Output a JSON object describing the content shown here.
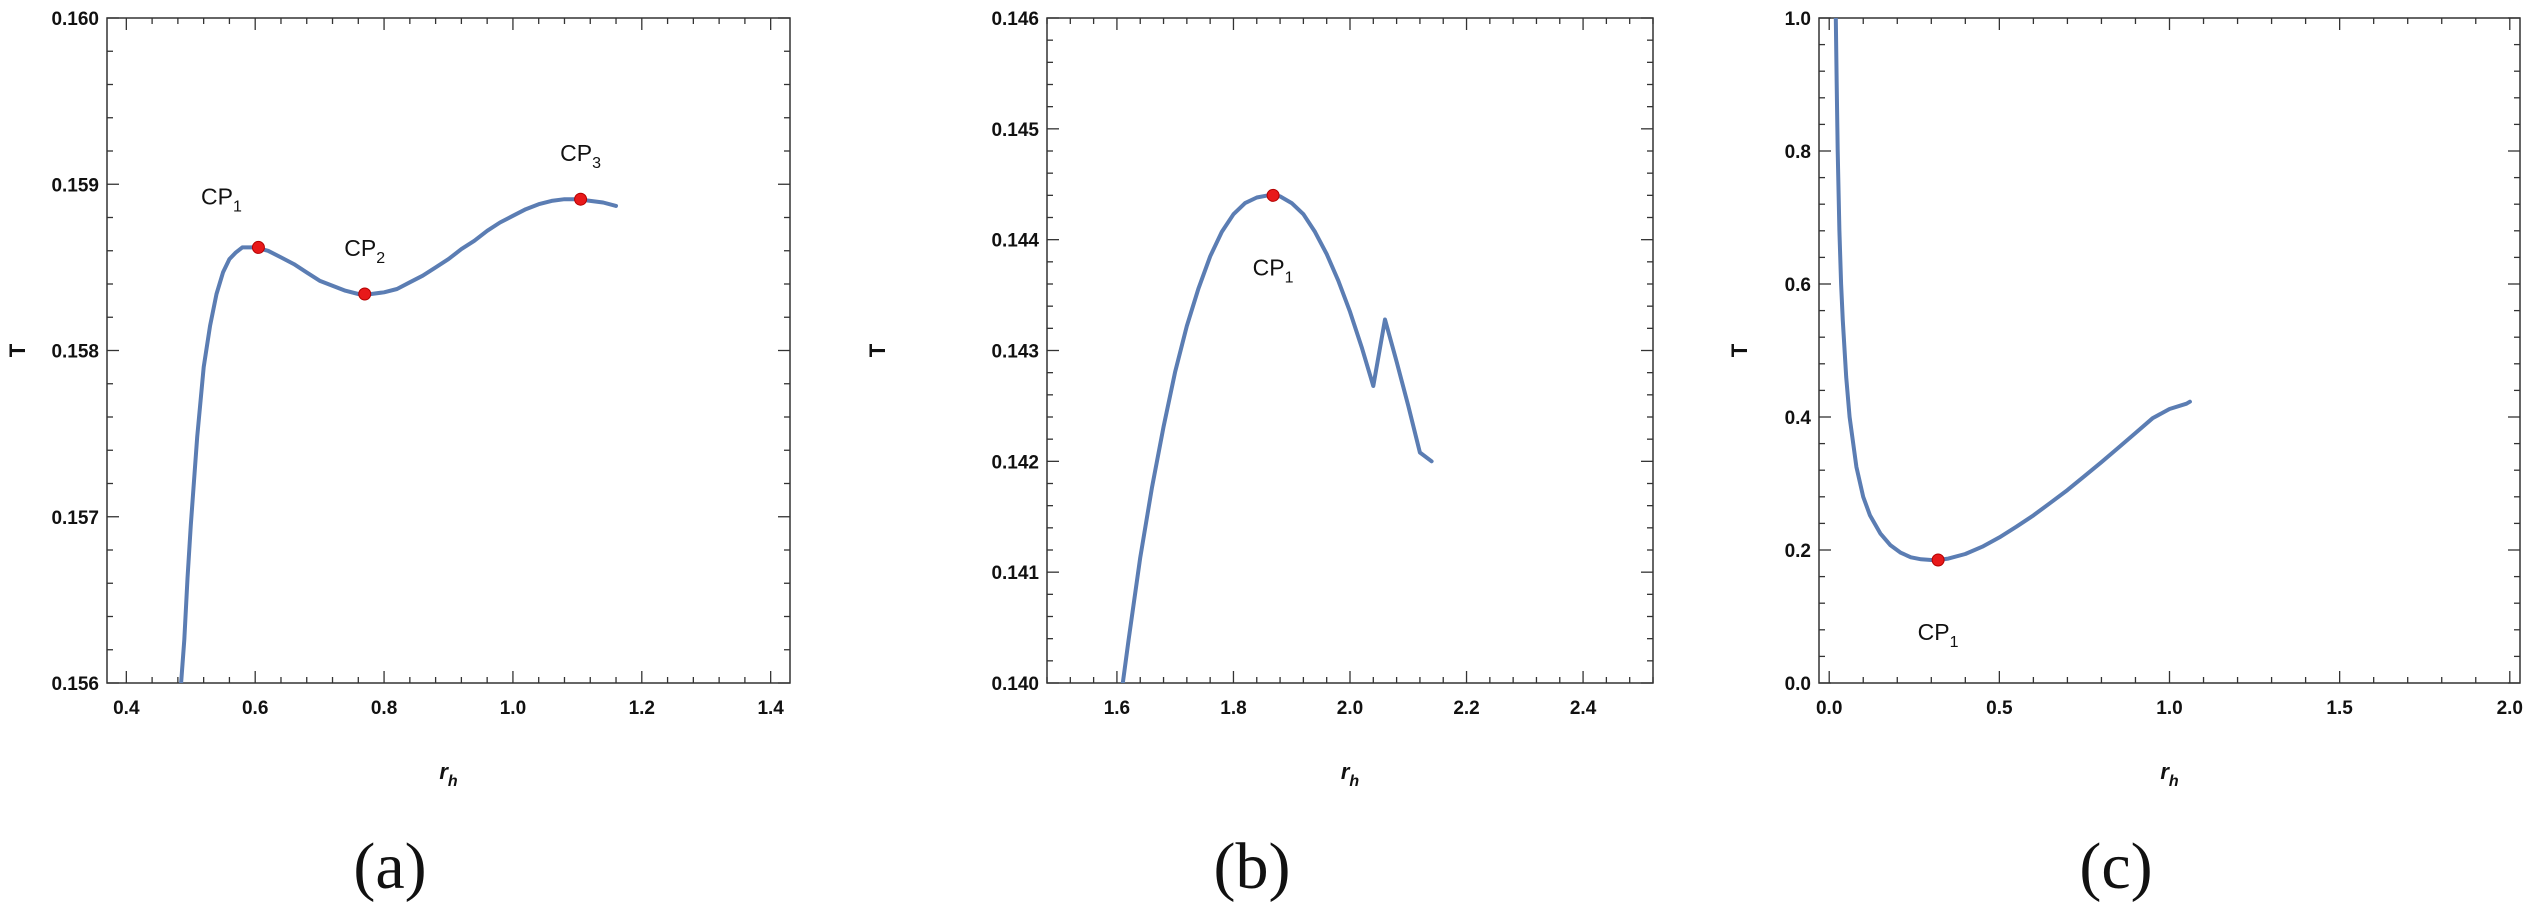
{
  "chart_data": [
    {
      "type": "line",
      "panel_label": "(a)",
      "xlabel_main": "r",
      "xlabel_sub": "h",
      "ylabel": "T",
      "xlim": [
        0.37,
        1.43
      ],
      "ylim": [
        0.156,
        0.16
      ],
      "x_ticks": [
        "0.4",
        "0.6",
        "0.8",
        "1.0",
        "1.2",
        "1.4"
      ],
      "y_ticks": [
        "0.156",
        "0.157",
        "0.158",
        "0.159",
        "0.160"
      ],
      "x_tick_values": [
        0.4,
        0.6,
        0.8,
        1.0,
        1.2,
        1.4
      ],
      "y_tick_values": [
        0.156,
        0.157,
        0.158,
        0.159,
        0.16
      ],
      "series": [
        {
          "x": [
            0.485,
            0.49,
            0.495,
            0.5,
            0.51,
            0.52,
            0.53,
            0.54,
            0.55,
            0.56,
            0.57,
            0.58,
            0.59,
            0.6,
            0.62,
            0.64,
            0.66,
            0.68,
            0.7,
            0.72,
            0.74,
            0.76,
            0.77,
            0.78,
            0.8,
            0.82,
            0.84,
            0.86,
            0.88,
            0.9,
            0.92,
            0.94,
            0.96,
            0.98,
            1.0,
            1.02,
            1.04,
            1.06,
            1.08,
            1.1,
            1.12,
            1.14,
            1.16
          ],
          "y": [
            0.156,
            0.15626,
            0.15663,
            0.15695,
            0.15748,
            0.1579,
            0.15815,
            0.15834,
            0.15847,
            0.15855,
            0.15859,
            0.15862,
            0.15862,
            0.15862,
            0.1586,
            0.15856,
            0.15852,
            0.15847,
            0.15842,
            0.15839,
            0.15836,
            0.15834,
            0.15834,
            0.15834,
            0.15835,
            0.15837,
            0.15841,
            0.15845,
            0.1585,
            0.15855,
            0.15861,
            0.15866,
            0.15872,
            0.15877,
            0.15881,
            0.15885,
            0.15888,
            0.1589,
            0.15891,
            0.15891,
            0.1589,
            0.15889,
            0.15887
          ]
        }
      ],
      "points": [
        {
          "label": "CP",
          "sub": "1",
          "x": 0.605,
          "y": 0.15862,
          "label_pos": "upper-left"
        },
        {
          "label": "CP",
          "sub": "2",
          "x": 0.77,
          "y": 0.15834,
          "label_pos": "above"
        },
        {
          "label": "CP",
          "sub": "3",
          "x": 1.105,
          "y": 0.15891,
          "label_pos": "above"
        }
      ]
    },
    {
      "type": "line",
      "panel_label": "(b)",
      "xlabel_main": "r",
      "xlabel_sub": "h",
      "ylabel": "T",
      "xlim": [
        1.48,
        2.52
      ],
      "ylim": [
        0.14,
        0.146
      ],
      "x_ticks": [
        "1.6",
        "1.8",
        "2.0",
        "2.2",
        "2.4"
      ],
      "y_ticks": [
        "0.140",
        "0.141",
        "0.142",
        "0.143",
        "0.144",
        "0.145",
        "0.146"
      ],
      "x_tick_values": [
        1.6,
        1.8,
        2.0,
        2.2,
        2.4
      ],
      "y_tick_values": [
        0.14,
        0.141,
        0.142,
        0.143,
        0.144,
        0.145,
        0.146
      ],
      "series": [
        {
          "x": [
            1.61,
            1.62,
            1.64,
            1.66,
            1.68,
            1.7,
            1.72,
            1.74,
            1.76,
            1.78,
            1.8,
            1.82,
            1.84,
            1.86,
            1.87,
            1.88,
            1.9,
            1.92,
            1.94,
            1.96,
            1.98,
            2.0,
            2.02,
            2.04,
            2.06,
            2.08,
            2.1,
            2.12,
            2.14
          ],
          "y": [
            0.14,
            0.14039,
            0.14113,
            0.14176,
            0.14231,
            0.14281,
            0.14322,
            0.14356,
            0.14385,
            0.14407,
            0.14423,
            0.14433,
            0.14438,
            0.1444,
            0.1444,
            0.14439,
            0.14433,
            0.14423,
            0.14407,
            0.14387,
            0.14363,
            0.14335,
            0.14303,
            0.14268,
            0.14328,
            0.1429,
            0.1425,
            0.14208,
            0.142
          ]
        }
      ],
      "points": [
        {
          "label": "CP",
          "sub": "1",
          "x": 1.868,
          "y": 0.1444,
          "label_pos": "below"
        }
      ]
    },
    {
      "type": "line",
      "panel_label": "(c)",
      "xlabel_main": "r",
      "xlabel_sub": "h",
      "ylabel": "T",
      "xlim": [
        -0.03,
        2.03
      ],
      "ylim": [
        0.0,
        1.0
      ],
      "x_ticks": [
        "0.0",
        "0.5",
        "1.0",
        "1.5",
        "2.0"
      ],
      "y_ticks": [
        "0.0",
        "0.2",
        "0.4",
        "0.6",
        "0.8",
        "1.0"
      ],
      "x_tick_values": [
        0.0,
        0.5,
        1.0,
        1.5,
        2.0
      ],
      "y_tick_values": [
        0.0,
        0.2,
        0.4,
        0.6,
        0.8,
        1.0
      ],
      "series": [
        {
          "x": [
            0.0195,
            0.022,
            0.025,
            0.03,
            0.035,
            0.04,
            0.05,
            0.06,
            0.08,
            0.1,
            0.12,
            0.15,
            0.18,
            0.21,
            0.24,
            0.27,
            0.3,
            0.32,
            0.35,
            0.4,
            0.45,
            0.5,
            0.55,
            0.6,
            0.65,
            0.7,
            0.75,
            0.8,
            0.85,
            0.9,
            0.95,
            1.0,
            1.05,
            1.06
          ],
          "y": [
            1.0,
            0.9,
            0.8,
            0.68,
            0.6,
            0.545,
            0.46,
            0.4,
            0.325,
            0.28,
            0.252,
            0.225,
            0.207,
            0.196,
            0.189,
            0.186,
            0.185,
            0.185,
            0.187,
            0.194,
            0.205,
            0.219,
            0.235,
            0.252,
            0.271,
            0.29,
            0.311,
            0.332,
            0.354,
            0.376,
            0.398,
            0.412,
            0.42,
            0.423
          ]
        }
      ],
      "points": [
        {
          "label": "CP",
          "sub": "1",
          "x": 0.32,
          "y": 0.185,
          "label_pos": "below"
        }
      ]
    }
  ]
}
